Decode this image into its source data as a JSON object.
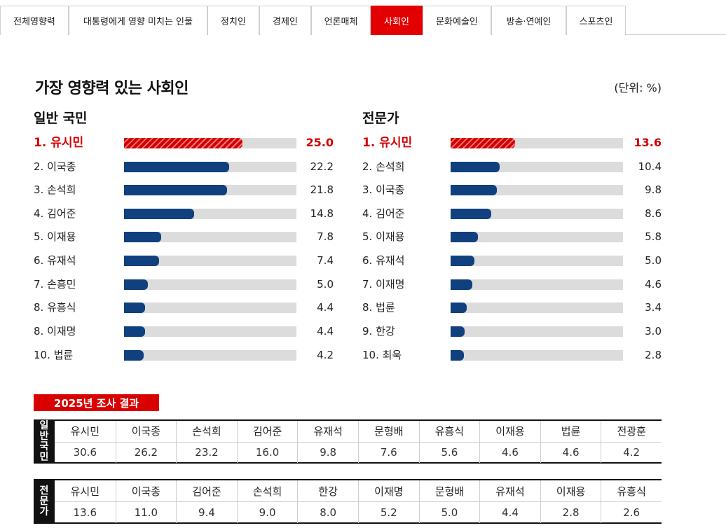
{
  "tabs": [
    {
      "label": "전체영향력",
      "active": false
    },
    {
      "label": "대통령에게 영향 미치는 인물",
      "active": false
    },
    {
      "label": "정치인",
      "active": false
    },
    {
      "label": "경제인",
      "active": false
    },
    {
      "label": "언론매체",
      "active": false
    },
    {
      "label": "사회인",
      "active": true
    },
    {
      "label": "문화예술인",
      "active": false
    },
    {
      "label": "방송·연예인",
      "active": false
    },
    {
      "label": "스포츠인",
      "active": false
    }
  ],
  "heading": {
    "title": "가장 영향력 있는 사회인",
    "unit": "(단위: %)"
  },
  "colors": {
    "accent": "#e30000",
    "bar": "#10407e",
    "track": "#dcdcdc"
  },
  "chart_data": [
    {
      "type": "bar",
      "title": "일반 국민",
      "categories": [
        "1. 유시민",
        "2. 이국종",
        "3. 손석희",
        "4. 김어준",
        "5. 이재용",
        "6. 유재석",
        "7. 손흥민",
        "8. 유흥식",
        "8. 이재명",
        "10. 법륜"
      ],
      "values": [
        25.0,
        22.2,
        21.8,
        14.8,
        7.8,
        7.4,
        5.0,
        4.4,
        4.4,
        4.2
      ],
      "labels": [
        "25.0",
        "22.2",
        "21.8",
        "14.8",
        "7.8",
        "7.4",
        "5.0",
        "4.4",
        "4.4",
        "4.2"
      ],
      "xlim": [
        0,
        100
      ]
    },
    {
      "type": "bar",
      "title": "전문가",
      "categories": [
        "1. 유시민",
        "2. 손석희",
        "3. 이국종",
        "4. 김어준",
        "5. 이재용",
        "6. 유재석",
        "7. 이재명",
        "8. 법륜",
        "9. 한강",
        "10. 최욱"
      ],
      "values": [
        13.6,
        10.4,
        9.8,
        8.6,
        5.8,
        5.0,
        4.6,
        3.4,
        3.0,
        2.8
      ],
      "labels": [
        "13.6",
        "10.4",
        "9.8",
        "8.6",
        "5.8",
        "5.0",
        "4.6",
        "3.4",
        "3.0",
        "2.8"
      ],
      "xlim": [
        0,
        100
      ]
    }
  ],
  "results_2025": {
    "label": "2025년 조사 결과",
    "tables": [
      {
        "group": "일반국민",
        "names": [
          "유시민",
          "이국종",
          "손석희",
          "김어준",
          "유재석",
          "문형배",
          "유흥식",
          "이재용",
          "법륜",
          "전광훈"
        ],
        "values": [
          "30.6",
          "26.2",
          "23.2",
          "16.0",
          "9.8",
          "7.6",
          "5.6",
          "4.6",
          "4.6",
          "4.2"
        ]
      },
      {
        "group": "전문가",
        "names": [
          "유시민",
          "이국종",
          "김어준",
          "손석희",
          "한강",
          "이재명",
          "문형배",
          "유재석",
          "이재용",
          "유흥식"
        ],
        "values": [
          "13.6",
          "11.0",
          "9.4",
          "9.0",
          "8.0",
          "5.2",
          "5.0",
          "4.4",
          "2.8",
          "2.6"
        ]
      }
    ]
  }
}
